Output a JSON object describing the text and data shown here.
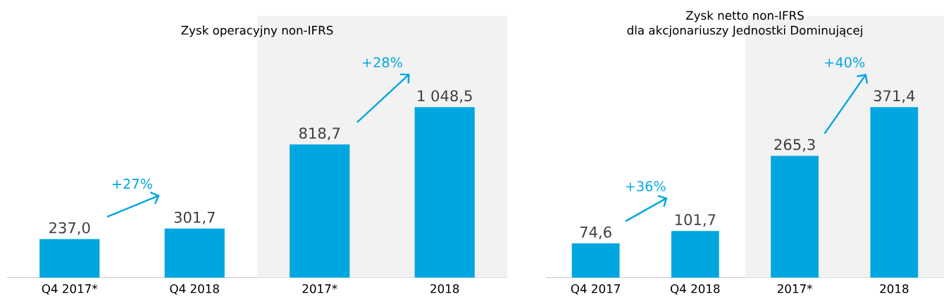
{
  "chart_data": [
    {
      "type": "bar",
      "title": "Zysk operacyjny non-IFRS",
      "categories": [
        "Q4 2017*",
        "Q4 2018",
        "2017*",
        "2018"
      ],
      "values": [
        237.0,
        301.7,
        818.7,
        1048.5
      ],
      "value_labels": [
        "237,0",
        "301,7",
        "818,7",
        "1 048,5"
      ],
      "color": "#00a6e0",
      "bands": [
        {
          "axis": "x",
          "from": "2017*",
          "to": "2018",
          "color": "#f2f2f2"
        }
      ],
      "annotations": [
        "+27%",
        "+28%"
      ]
    },
    {
      "type": "bar",
      "title": "Zysk netto non-IFRS",
      "subtitle": "dla akcjonariuszy Jednostki Dominującej",
      "categories": [
        "Q4 2017",
        "Q4 2018",
        "2017*",
        "2018"
      ],
      "values": [
        74.6,
        101.7,
        265.3,
        371.4
      ],
      "value_labels": [
        "74,6",
        "101,7",
        "265,3",
        "371,4"
      ],
      "color": "#00a6e0",
      "bands": [
        {
          "axis": "x",
          "from": "2017*",
          "to": "2018",
          "color": "#f2f2f2"
        }
      ],
      "annotations": [
        "+36%",
        "+40%"
      ]
    }
  ]
}
